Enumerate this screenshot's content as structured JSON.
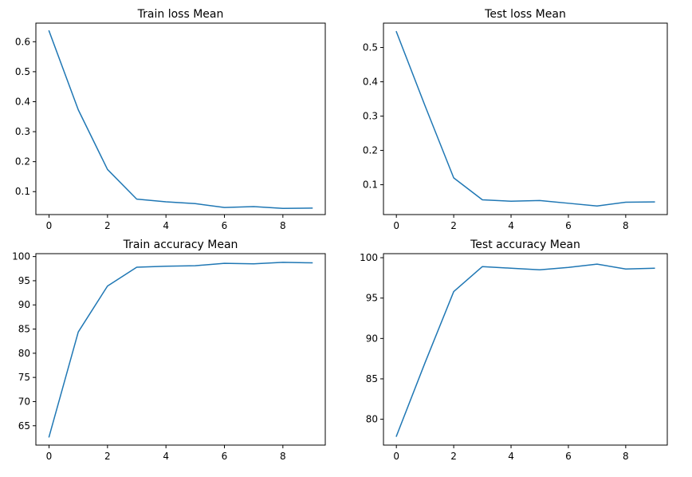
{
  "chart_data": [
    {
      "type": "line",
      "title": "Train loss Mean",
      "xlabel": "",
      "ylabel": "",
      "grid": false,
      "xlim": [
        -0.45,
        9.45
      ],
      "ylim": [
        0.0235,
        0.662
      ],
      "xticks": [
        0,
        2,
        4,
        6,
        8
      ],
      "xtick_labels": [
        "0",
        "2",
        "4",
        "6",
        "8"
      ],
      "yticks": [
        0.1,
        0.2,
        0.3,
        0.4,
        0.5,
        0.6
      ],
      "ytick_labels": [
        "0.1",
        "0.2",
        "0.3",
        "0.4",
        "0.5",
        "0.6"
      ],
      "x": [
        0,
        1,
        2,
        3,
        4,
        5,
        6,
        7,
        8,
        9
      ],
      "series": [
        {
          "color": "#1f77b4",
          "values": [
            0.636,
            0.373,
            0.174,
            0.075,
            0.066,
            0.06,
            0.047,
            0.05,
            0.044,
            0.045
          ]
        }
      ]
    },
    {
      "type": "line",
      "title": "Test loss Mean",
      "xlabel": "",
      "ylabel": "",
      "grid": false,
      "xlim": [
        -0.45,
        9.45
      ],
      "ylim": [
        0.013,
        0.571
      ],
      "xticks": [
        0,
        2,
        4,
        6,
        8
      ],
      "xtick_labels": [
        "0",
        "2",
        "4",
        "6",
        "8"
      ],
      "yticks": [
        0.1,
        0.2,
        0.3,
        0.4,
        0.5
      ],
      "ytick_labels": [
        "0.1",
        "0.2",
        "0.3",
        "0.4",
        "0.5"
      ],
      "x": [
        0,
        1,
        2,
        3,
        4,
        5,
        6,
        7,
        8,
        9
      ],
      "series": [
        {
          "color": "#1f77b4",
          "values": [
            0.546,
            0.33,
            0.12,
            0.056,
            0.052,
            0.054,
            0.046,
            0.038,
            0.049,
            0.05
          ]
        }
      ]
    },
    {
      "type": "line",
      "title": "Train accuracy Mean",
      "xlabel": "",
      "ylabel": "",
      "grid": false,
      "xlim": [
        -0.45,
        9.45
      ],
      "ylim": [
        61.0,
        100.6
      ],
      "xticks": [
        0,
        2,
        4,
        6,
        8
      ],
      "xtick_labels": [
        "0",
        "2",
        "4",
        "6",
        "8"
      ],
      "yticks": [
        65,
        70,
        75,
        80,
        85,
        90,
        95,
        100
      ],
      "ytick_labels": [
        "65",
        "70",
        "75",
        "80",
        "85",
        "90",
        "95",
        "100"
      ],
      "x": [
        0,
        1,
        2,
        3,
        4,
        5,
        6,
        7,
        8,
        9
      ],
      "series": [
        {
          "color": "#1f77b4",
          "values": [
            62.7,
            84.4,
            93.9,
            97.8,
            98.0,
            98.1,
            98.6,
            98.5,
            98.8,
            98.7
          ]
        }
      ]
    },
    {
      "type": "line",
      "title": "Test accuracy Mean",
      "xlabel": "",
      "ylabel": "",
      "grid": false,
      "xlim": [
        -0.45,
        9.45
      ],
      "ylim": [
        76.8,
        100.5
      ],
      "xticks": [
        0,
        2,
        4,
        6,
        8
      ],
      "xtick_labels": [
        "0",
        "2",
        "4",
        "6",
        "8"
      ],
      "yticks": [
        80,
        85,
        90,
        95,
        100
      ],
      "ytick_labels": [
        "80",
        "85",
        "90",
        "95",
        "100"
      ],
      "x": [
        0,
        1,
        2,
        3,
        4,
        5,
        6,
        7,
        8,
        9
      ],
      "series": [
        {
          "color": "#1f77b4",
          "values": [
            77.9,
            87.0,
            95.8,
            98.9,
            98.7,
            98.5,
            98.8,
            99.2,
            98.6,
            98.7
          ]
        }
      ]
    }
  ]
}
